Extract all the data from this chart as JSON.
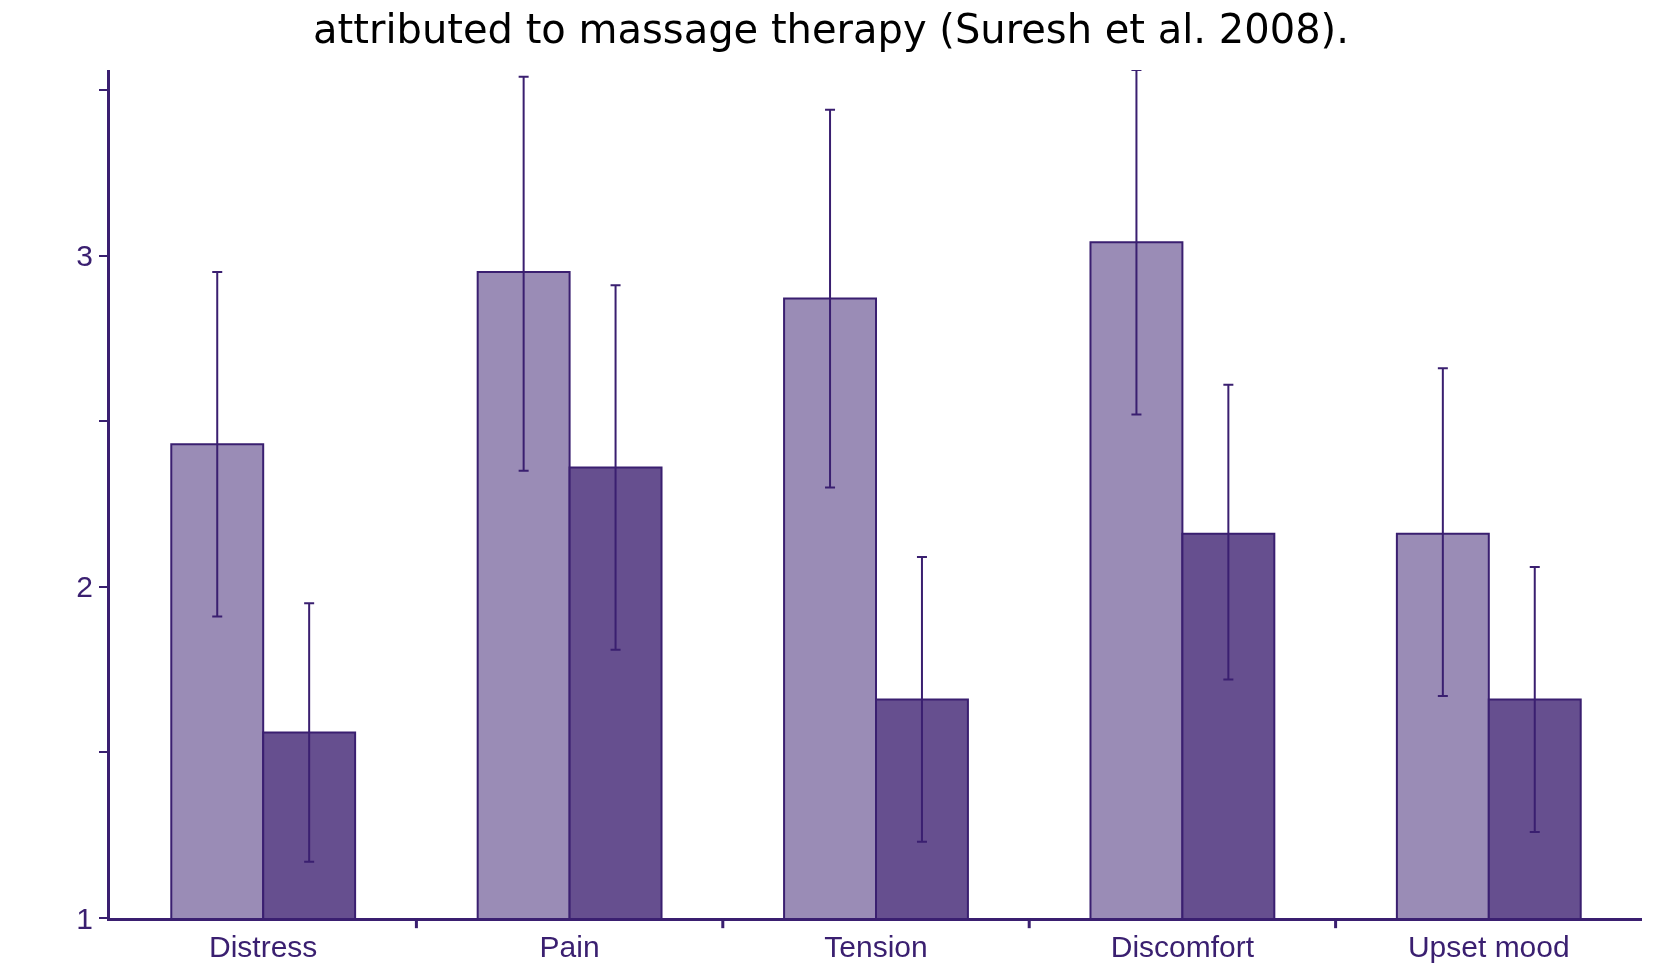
{
  "chart_data": {
    "type": "bar",
    "title": "attributed to massage therapy (Suresh et al. 2008).",
    "categories": [
      "Distress",
      "Pain",
      "Tension",
      "Discomfort",
      "Upset mood"
    ],
    "series": [
      {
        "color": "#9a8cb6",
        "values": [
          2.43,
          2.95,
          2.87,
          3.04,
          2.16
        ],
        "errors": [
          [
            1.91,
            2.95
          ],
          [
            2.35,
            3.54
          ],
          [
            2.3,
            3.44
          ],
          [
            2.52,
            3.56
          ],
          [
            1.67,
            2.66
          ]
        ]
      },
      {
        "color": "#664f8f",
        "values": [
          1.56,
          2.36,
          1.66,
          2.16,
          1.66
        ],
        "errors": [
          [
            1.17,
            1.95
          ],
          [
            1.81,
            2.91
          ],
          [
            1.23,
            2.09
          ],
          [
            1.72,
            2.61
          ],
          [
            1.26,
            2.06
          ]
        ]
      }
    ],
    "ylim": [
      1,
      3.56
    ],
    "yticks": [
      1,
      {
        "value": 1.5,
        "label": null
      },
      2,
      {
        "value": 2.5,
        "label": null
      },
      3,
      {
        "value": 3.5,
        "label": null
      }
    ],
    "grid": false
  }
}
